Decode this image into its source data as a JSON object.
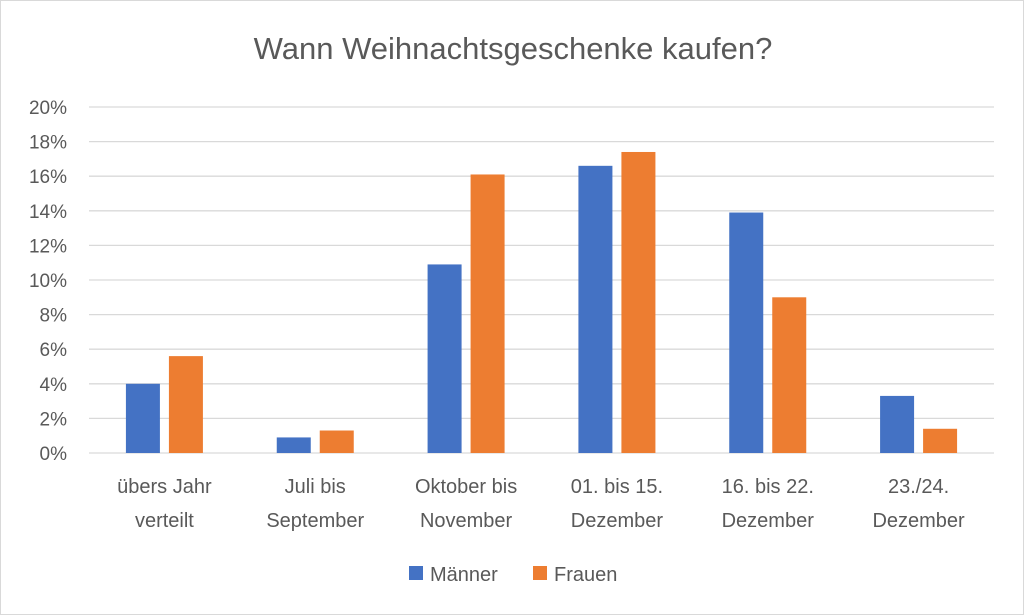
{
  "chart_data": {
    "type": "bar",
    "title": "Wann Weihnachtsgeschenke kaufen?",
    "xlabel": "",
    "ylabel": "",
    "categories": [
      [
        "übers Jahr",
        "verteilt"
      ],
      [
        "Juli bis",
        "September"
      ],
      [
        "Oktober bis",
        "November"
      ],
      [
        "01. bis 15.",
        "Dezember"
      ],
      [
        "16. bis 22.",
        "Dezember"
      ],
      [
        "23./24.",
        "Dezember"
      ]
    ],
    "series": [
      {
        "name": "Männer",
        "color": "#4472c4",
        "values": [
          4.0,
          0.9,
          10.9,
          16.6,
          13.9,
          3.3
        ]
      },
      {
        "name": "Frauen",
        "color": "#ed7d31",
        "values": [
          5.6,
          1.3,
          16.1,
          17.4,
          9.0,
          1.4
        ]
      }
    ],
    "ylim": [
      0,
      20
    ],
    "yticks": [
      "0%",
      "2%",
      "4%",
      "6%",
      "8%",
      "10%",
      "12%",
      "14%",
      "16%",
      "18%",
      "20%"
    ],
    "grid": true,
    "legend": "bottom-center",
    "gridline_color": "#d9d9d9"
  }
}
